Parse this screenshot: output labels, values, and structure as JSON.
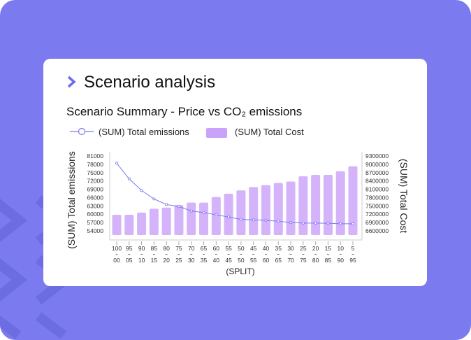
{
  "header": {
    "title": "Scenario analysis",
    "icon": "chevron-right-icon"
  },
  "colors": {
    "background": "#7b7bef",
    "bar": "#d4b3fb",
    "line": "#7b7bef",
    "accent": "#6c6cf0"
  },
  "chart_data": {
    "type": "bar+line",
    "title": "Scenario Summary - Price vs CO₂ emissions",
    "xlabel": "(SPLIT)",
    "ylabel_left": "(SUM) Total emissions",
    "ylabel_right": "(SUM) Total Cost",
    "legend_placement": "top-left",
    "categories": [
      [
        "100",
        "00"
      ],
      [
        "95",
        "05"
      ],
      [
        "90",
        "10"
      ],
      [
        "85",
        "15"
      ],
      [
        "80",
        "20"
      ],
      [
        "75",
        "25"
      ],
      [
        "70",
        "30"
      ],
      [
        "65",
        "35"
      ],
      [
        "60",
        "40"
      ],
      [
        "55",
        "45"
      ],
      [
        "50",
        "50"
      ],
      [
        "45",
        "55"
      ],
      [
        "40",
        "60"
      ],
      [
        "35",
        "65"
      ],
      [
        "30",
        "70"
      ],
      [
        "25",
        "75"
      ],
      [
        "20",
        "80"
      ],
      [
        "15",
        "85"
      ],
      [
        "10",
        "90"
      ],
      [
        "5",
        "95"
      ]
    ],
    "left_ticks": [
      "81000",
      "78000",
      "75000",
      "72000",
      "69000",
      "66000",
      "63000",
      "60000",
      "57000",
      "54000"
    ],
    "right_ticks": [
      "9300000",
      "9000000",
      "8700000",
      "8400000",
      "8100000",
      "7800000",
      "7500000",
      "7200000",
      "6900000",
      "6600000"
    ],
    "ylim_left": [
      52500,
      81000
    ],
    "ylim_right": [
      6450000,
      9300000
    ],
    "grid": false,
    "series": [
      {
        "name": "(SUM) Total Cost",
        "type": "bar",
        "axis": "right",
        "values": [
          7180000,
          7180000,
          7260000,
          7400000,
          7440000,
          7530000,
          7620000,
          7620000,
          7820000,
          7940000,
          8060000,
          8180000,
          8250000,
          8330000,
          8380000,
          8570000,
          8620000,
          8620000,
          8750000,
          8930000
        ]
      },
      {
        "name": "(SUM) Total emissions",
        "type": "line",
        "axis": "left",
        "values": [
          78400,
          72760,
          68570,
          65520,
          63500,
          62800,
          61170,
          60600,
          59830,
          59000,
          58150,
          58000,
          57820,
          57490,
          57000,
          56830,
          56830,
          56750,
          56560,
          56560
        ]
      }
    ]
  }
}
